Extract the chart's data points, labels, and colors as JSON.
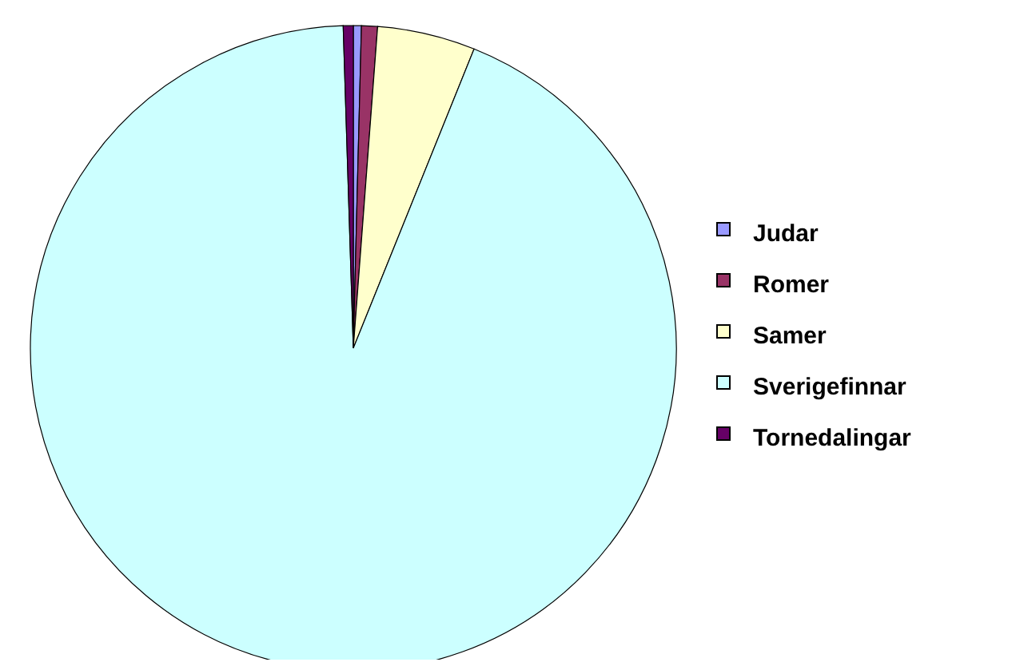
{
  "chart_data": {
    "type": "pie",
    "categories": [
      "Judar",
      "Romer",
      "Samer",
      "Sverigefinnar",
      "Tornedalingar"
    ],
    "values": [
      0.4,
      0.8,
      4.9,
      93.4,
      0.5
    ],
    "colors": [
      "#9999ff",
      "#993366",
      "#ffffcc",
      "#ccffff",
      "#660066"
    ],
    "legend": "right"
  }
}
